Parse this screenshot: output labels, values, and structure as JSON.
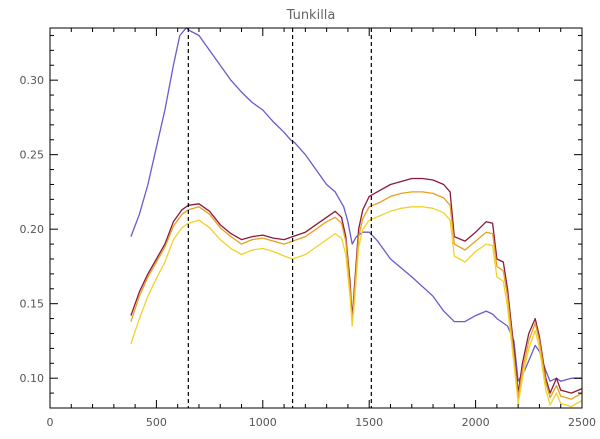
{
  "chart_data": {
    "type": "line",
    "title": "Tunkilla",
    "xlabel": "",
    "ylabel": "",
    "xlim": [
      0,
      2500
    ],
    "ylim": [
      0.08,
      0.335
    ],
    "x_ticks": [
      0,
      500,
      1000,
      1500,
      2000,
      2500
    ],
    "y_ticks": [
      0.1,
      0.15,
      0.2,
      0.25,
      0.3
    ],
    "x_tick_labels": [
      "0",
      "500",
      "1000",
      "1500",
      "2000",
      "2500"
    ],
    "y_tick_labels": [
      "0.10",
      "0.15",
      "0.20",
      "0.25",
      "0.30"
    ],
    "grid": false,
    "vertical_lines": [
      650,
      1140,
      1510
    ],
    "series": [
      {
        "color": "#6a5acd",
        "x": [
          380,
          420,
          460,
          500,
          540,
          580,
          610,
          640,
          660,
          700,
          750,
          800,
          850,
          900,
          950,
          1000,
          1050,
          1100,
          1130,
          1150,
          1200,
          1250,
          1300,
          1340,
          1380,
          1400,
          1420,
          1440,
          1470,
          1500,
          1540,
          1600,
          1700,
          1800,
          1850,
          1900,
          1950,
          2000,
          2050,
          2080,
          2100,
          2150,
          2180,
          2200,
          2230,
          2260,
          2280,
          2300,
          2330,
          2350,
          2380,
          2400,
          2450,
          2500
        ],
        "y": [
          0.195,
          0.21,
          0.23,
          0.255,
          0.28,
          0.31,
          0.33,
          0.335,
          0.333,
          0.33,
          0.32,
          0.31,
          0.3,
          0.292,
          0.285,
          0.28,
          0.272,
          0.265,
          0.26,
          0.258,
          0.25,
          0.24,
          0.23,
          0.225,
          0.215,
          0.205,
          0.19,
          0.195,
          0.198,
          0.198,
          0.192,
          0.18,
          0.168,
          0.155,
          0.145,
          0.138,
          0.138,
          0.142,
          0.145,
          0.143,
          0.14,
          0.135,
          0.125,
          0.098,
          0.105,
          0.115,
          0.122,
          0.118,
          0.105,
          0.098,
          0.1,
          0.098,
          0.1,
          0.1
        ]
      },
      {
        "color": "#8b1a3c",
        "x": [
          380,
          420,
          460,
          500,
          540,
          580,
          620,
          650,
          700,
          750,
          800,
          850,
          900,
          950,
          1000,
          1050,
          1100,
          1140,
          1200,
          1250,
          1300,
          1340,
          1370,
          1390,
          1410,
          1420,
          1430,
          1450,
          1470,
          1500,
          1550,
          1600,
          1650,
          1700,
          1750,
          1800,
          1850,
          1880,
          1900,
          1950,
          2000,
          2050,
          2080,
          2100,
          2130,
          2150,
          2180,
          2200,
          2220,
          2250,
          2280,
          2300,
          2330,
          2350,
          2380,
          2400,
          2450,
          2500
        ],
        "y": [
          0.142,
          0.158,
          0.17,
          0.18,
          0.19,
          0.205,
          0.213,
          0.216,
          0.217,
          0.212,
          0.203,
          0.197,
          0.193,
          0.195,
          0.196,
          0.194,
          0.193,
          0.195,
          0.198,
          0.203,
          0.208,
          0.212,
          0.208,
          0.195,
          0.165,
          0.14,
          0.16,
          0.2,
          0.213,
          0.222,
          0.226,
          0.23,
          0.232,
          0.234,
          0.234,
          0.233,
          0.23,
          0.225,
          0.195,
          0.192,
          0.198,
          0.205,
          0.204,
          0.18,
          0.178,
          0.16,
          0.12,
          0.09,
          0.11,
          0.13,
          0.14,
          0.128,
          0.1,
          0.09,
          0.1,
          0.092,
          0.09,
          0.093
        ]
      },
      {
        "color": "#e8a020",
        "x": [
          380,
          420,
          460,
          500,
          540,
          580,
          620,
          650,
          700,
          750,
          800,
          850,
          900,
          950,
          1000,
          1050,
          1100,
          1140,
          1200,
          1250,
          1300,
          1340,
          1370,
          1390,
          1410,
          1420,
          1430,
          1450,
          1470,
          1500,
          1550,
          1600,
          1650,
          1700,
          1750,
          1800,
          1850,
          1880,
          1900,
          1950,
          2000,
          2050,
          2080,
          2100,
          2130,
          2150,
          2180,
          2200,
          2220,
          2250,
          2280,
          2300,
          2330,
          2350,
          2380,
          2400,
          2450,
          2500
        ],
        "y": [
          0.138,
          0.155,
          0.168,
          0.178,
          0.188,
          0.202,
          0.21,
          0.213,
          0.215,
          0.21,
          0.201,
          0.195,
          0.19,
          0.193,
          0.194,
          0.192,
          0.19,
          0.192,
          0.195,
          0.2,
          0.205,
          0.208,
          0.204,
          0.192,
          0.16,
          0.137,
          0.155,
          0.195,
          0.207,
          0.215,
          0.218,
          0.222,
          0.224,
          0.225,
          0.225,
          0.224,
          0.221,
          0.216,
          0.19,
          0.186,
          0.192,
          0.198,
          0.197,
          0.175,
          0.172,
          0.155,
          0.115,
          0.087,
          0.105,
          0.125,
          0.137,
          0.125,
          0.097,
          0.087,
          0.095,
          0.088,
          0.086,
          0.09
        ]
      },
      {
        "color": "#f2d22a",
        "x": [
          380,
          420,
          460,
          500,
          540,
          580,
          620,
          650,
          700,
          750,
          800,
          850,
          900,
          950,
          1000,
          1050,
          1100,
          1140,
          1200,
          1250,
          1300,
          1340,
          1370,
          1390,
          1410,
          1420,
          1430,
          1450,
          1470,
          1500,
          1550,
          1600,
          1650,
          1700,
          1750,
          1800,
          1850,
          1880,
          1900,
          1950,
          2000,
          2050,
          2080,
          2100,
          2130,
          2150,
          2180,
          2200,
          2220,
          2250,
          2280,
          2300,
          2330,
          2350,
          2380,
          2400,
          2450,
          2500
        ],
        "y": [
          0.123,
          0.14,
          0.155,
          0.167,
          0.178,
          0.193,
          0.201,
          0.204,
          0.206,
          0.201,
          0.193,
          0.187,
          0.183,
          0.186,
          0.187,
          0.185,
          0.182,
          0.18,
          0.183,
          0.188,
          0.193,
          0.197,
          0.194,
          0.183,
          0.155,
          0.135,
          0.15,
          0.188,
          0.2,
          0.206,
          0.209,
          0.212,
          0.214,
          0.215,
          0.215,
          0.214,
          0.211,
          0.206,
          0.182,
          0.178,
          0.185,
          0.19,
          0.189,
          0.168,
          0.165,
          0.148,
          0.11,
          0.083,
          0.1,
          0.12,
          0.132,
          0.12,
          0.092,
          0.082,
          0.09,
          0.083,
          0.081,
          0.085
        ]
      }
    ]
  }
}
